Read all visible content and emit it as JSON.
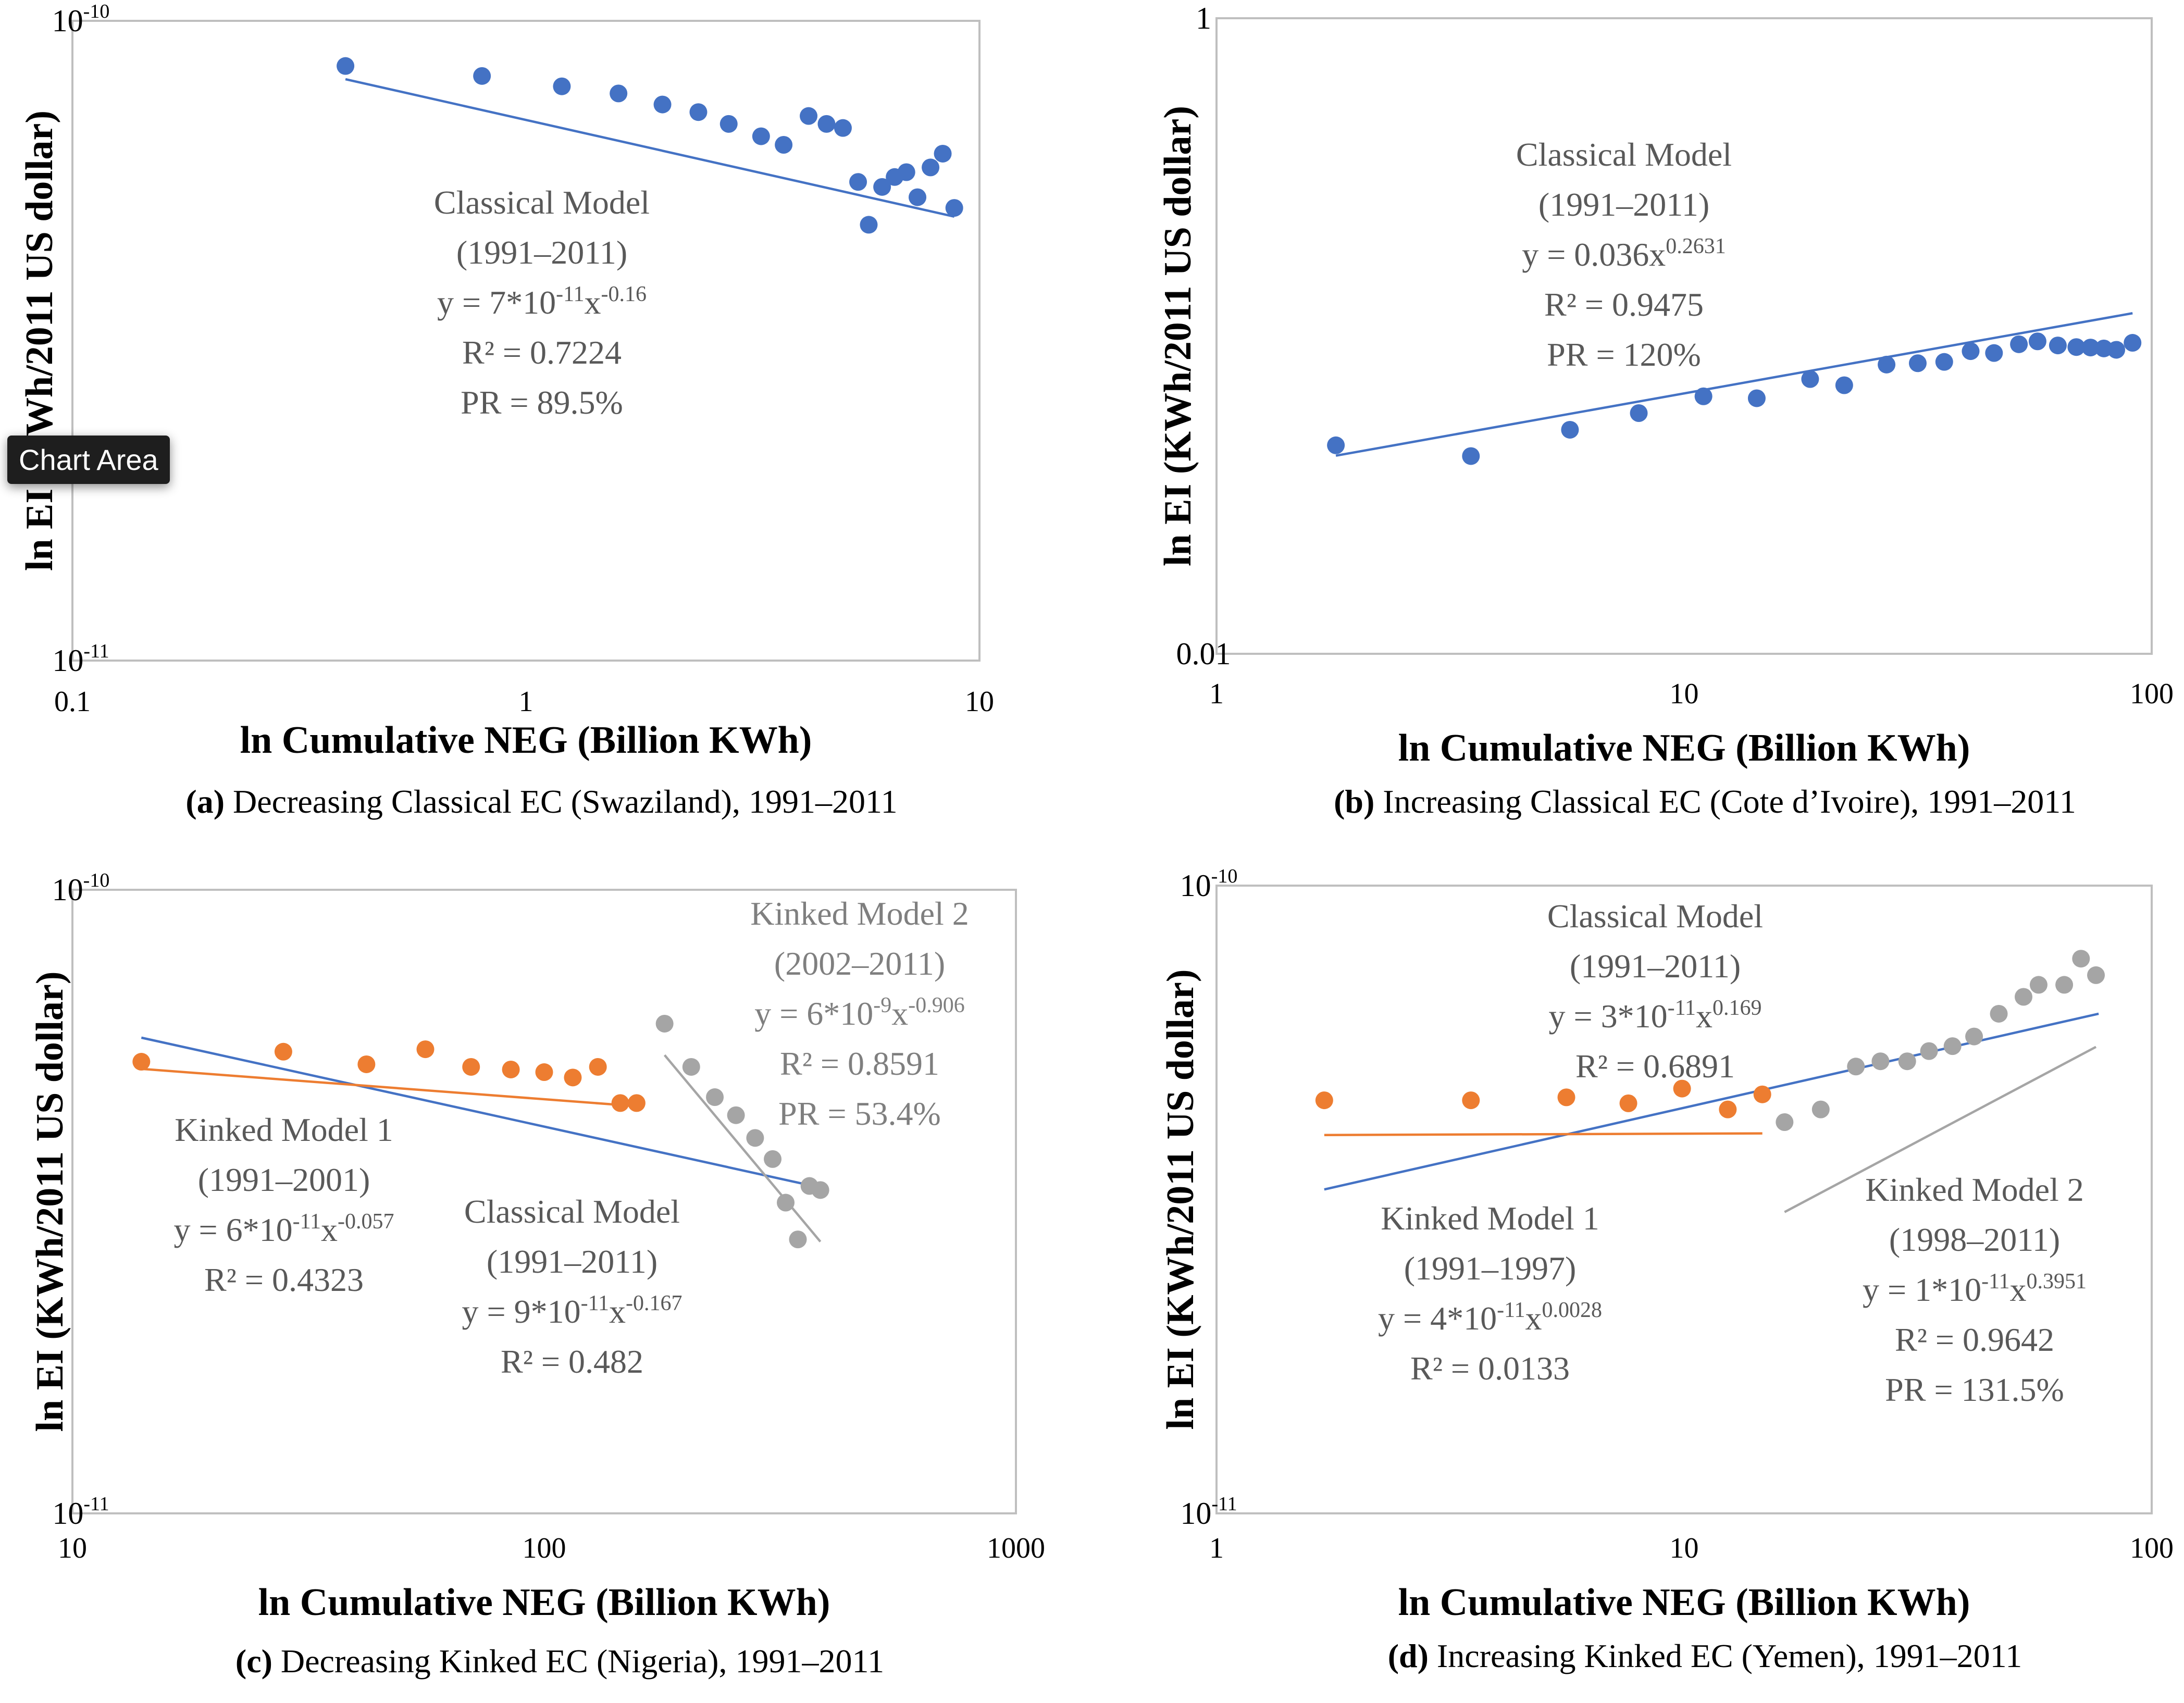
{
  "tooltip": {
    "text": "Chart Area"
  },
  "colors": {
    "blue": "#4472c4",
    "orange": "#ed7d31",
    "gray": "#a5a5a5",
    "text_gray": "#595959",
    "frame": "#bfbfbf"
  },
  "chart_data": [
    {
      "type": "scatter",
      "scale": "log-log",
      "caption_letter": "(a)",
      "caption_rest": " Decreasing Classical EC (Swaziland), 1991–2011",
      "xlabel": "ln Cumulative NEG (Billion KWh)",
      "ylabel": "ln EI (KWh/2011 US dollar)",
      "xlim": [
        0.1,
        10
      ],
      "ylim": [
        1e-11,
        1e-10
      ],
      "x_ticks": [
        {
          "label": "0.1",
          "value": 0.1
        },
        {
          "label": "1",
          "value": 1
        },
        {
          "label": "10",
          "value": 10
        }
      ],
      "y_ticks": [
        {
          "base": "10",
          "exp": "-11",
          "value": 1e-11
        },
        {
          "base": "10",
          "exp": "-10",
          "value": 1e-10
        }
      ],
      "series": [
        {
          "name": "Classical Model",
          "color": "#4472c4",
          "points": [
            [
              0.4,
              8.5e-11
            ],
            [
              0.8,
              8.2e-11
            ],
            [
              1.2,
              7.9e-11
            ],
            [
              1.6,
              7.7e-11
            ],
            [
              2.0,
              7.4e-11
            ],
            [
              2.4,
              7.2e-11
            ],
            [
              2.8,
              6.9e-11
            ],
            [
              3.3,
              6.6e-11
            ],
            [
              3.7,
              6.4e-11
            ],
            [
              4.2,
              7.1e-11
            ],
            [
              4.6,
              6.9e-11
            ],
            [
              5.0,
              6.8e-11
            ],
            [
              5.4,
              5.6e-11
            ],
            [
              5.7,
              4.8e-11
            ],
            [
              6.1,
              5.5e-11
            ],
            [
              6.5,
              5.7e-11
            ],
            [
              6.9,
              5.8e-11
            ],
            [
              7.3,
              5.3e-11
            ],
            [
              7.8,
              5.9e-11
            ],
            [
              8.3,
              6.2e-11
            ],
            [
              8.8,
              5.1e-11
            ]
          ],
          "fit": {
            "x_range": [
              0.4,
              8.8
            ],
            "coef": 7e-11,
            "exp": -0.16
          }
        }
      ],
      "annotations": [
        {
          "color": "#595959",
          "lines": [
            {
              "text": "Classical Model"
            },
            {
              "text": "(1991–2011)"
            },
            {
              "text": "y = 7*10",
              "sup": "-11",
              "text2": "x",
              "sup2": "-0.16"
            },
            {
              "text": "R² = 0.7224"
            },
            {
              "text": "PR = 89.5%"
            }
          ]
        }
      ]
    },
    {
      "type": "scatter",
      "scale": "log-log",
      "caption_letter": "(b)",
      "caption_rest": " Increasing Classical EC (Cote d’Ivoire), 1991–2011",
      "xlabel": "ln Cumulative NEG (Billion KWh)",
      "ylabel": "ln EI (KWh/2011 US dollar)",
      "xlim": [
        1,
        100
      ],
      "ylim": [
        0.01,
        1
      ],
      "x_ticks": [
        {
          "label": "1",
          "value": 1
        },
        {
          "label": "10",
          "value": 10
        },
        {
          "label": "100",
          "value": 100
        }
      ],
      "y_ticks": [
        {
          "base": "0.01",
          "value": 0.01
        },
        {
          "base": "1",
          "value": 1
        }
      ],
      "series": [
        {
          "name": "Classical Model",
          "color": "#4472c4",
          "points": [
            [
              1.8,
              0.0453
            ],
            [
              3.5,
              0.0419
            ],
            [
              5.7,
              0.0507
            ],
            [
              8.0,
              0.0572
            ],
            [
              11.0,
              0.0646
            ],
            [
              14.3,
              0.0637
            ],
            [
              18.6,
              0.0732
            ],
            [
              22.0,
              0.07
            ],
            [
              27.1,
              0.0813
            ],
            [
              31.6,
              0.0821
            ],
            [
              36.0,
              0.0829
            ],
            [
              41.0,
              0.0896
            ],
            [
              46.0,
              0.0884
            ],
            [
              52.0,
              0.0942
            ],
            [
              57.0,
              0.0962
            ],
            [
              63.0,
              0.0934
            ],
            [
              69.0,
              0.0923
            ],
            [
              74.0,
              0.092
            ],
            [
              79.0,
              0.0914
            ],
            [
              84.0,
              0.0905
            ],
            [
              91.0,
              0.0952
            ]
          ],
          "fit": {
            "x_range": [
              1.8,
              91
            ],
            "coef": 0.036,
            "exp": 0.2631
          }
        }
      ],
      "annotations": [
        {
          "color": "#595959",
          "lines": [
            {
              "text": "Classical Model"
            },
            {
              "text": "(1991–2011)"
            },
            {
              "text": "y = 0.036x",
              "sup": "0.2631"
            },
            {
              "text": "R² = 0.9475"
            },
            {
              "text": "PR = 120%"
            }
          ]
        }
      ]
    },
    {
      "type": "scatter",
      "scale": "log-log",
      "caption_letter": "(c)",
      "caption_rest": " Decreasing Kinked EC (Nigeria), 1991–2011",
      "xlabel": "ln Cumulative NEG (Billion KWh)",
      "ylabel": "ln EI (KWh/2011 US dollar)",
      "xlim": [
        10,
        1000
      ],
      "ylim": [
        1e-11,
        1e-10
      ],
      "x_ticks": [
        {
          "label": "10",
          "value": 10
        },
        {
          "label": "100",
          "value": 100
        },
        {
          "label": "1000",
          "value": 1000
        }
      ],
      "y_ticks": [
        {
          "base": "10",
          "exp": "-11",
          "value": 1e-11
        },
        {
          "base": "10",
          "exp": "-10",
          "value": 1e-10
        }
      ],
      "series": [
        {
          "name": "Classical Model",
          "color": "#4472c4",
          "points": [],
          "fit": {
            "x_range": [
              14,
              380
            ],
            "coef": 9e-11,
            "exp": -0.167
          }
        },
        {
          "name": "Kinked Model 1",
          "color": "#ed7d31",
          "points": [
            [
              14,
              5.3e-11
            ],
            [
              28,
              5.5e-11
            ],
            [
              42,
              5.25e-11
            ],
            [
              56,
              5.55e-11
            ],
            [
              70,
              5.2e-11
            ],
            [
              85,
              5.15e-11
            ],
            [
              100,
              5.1e-11
            ],
            [
              115,
              5e-11
            ],
            [
              130,
              5.2e-11
            ],
            [
              145,
              4.55e-11
            ],
            [
              157,
              4.55e-11
            ]
          ],
          "fit": {
            "x_range": [
              14,
              160
            ],
            "coef": 6e-11,
            "exp": -0.057
          }
        },
        {
          "name": "Kinked Model 2",
          "color": "#a5a5a5",
          "points": [
            [
              180,
              6.1e-11
            ],
            [
              205,
              5.2e-11
            ],
            [
              230,
              4.65e-11
            ],
            [
              255,
              4.35e-11
            ],
            [
              280,
              4e-11
            ],
            [
              305,
              3.7e-11
            ],
            [
              325,
              3.15e-11
            ],
            [
              345,
              2.75e-11
            ],
            [
              365,
              3.35e-11
            ],
            [
              385,
              3.3e-11
            ]
          ],
          "fit": {
            "x_range": [
              180,
              385
            ],
            "coef": 6e-09,
            "exp": -0.906
          }
        }
      ],
      "annotations": [
        {
          "color": "#7f7f7f",
          "lines": [
            {
              "text": "Kinked Model 2"
            },
            {
              "text": "(2002–2011)"
            },
            {
              "text": "y = 6*10",
              "sup": "-9",
              "text2": "x",
              "sup2": "-0.906"
            },
            {
              "text": "R² = 0.8591"
            },
            {
              "text": "PR = 53.4%"
            }
          ]
        },
        {
          "color": "#595959",
          "lines": [
            {
              "text": "Kinked Model 1"
            },
            {
              "text": "(1991–2001)"
            },
            {
              "text": "y = 6*10",
              "sup": "-11",
              "text2": "x",
              "sup2": "-0.057"
            },
            {
              "text": "R² = 0.4323"
            }
          ]
        },
        {
          "color": "#595959",
          "lines": [
            {
              "text": "Classical Model"
            },
            {
              "text": "(1991–2011)"
            },
            {
              "text": "y = 9*10",
              "sup": "-11",
              "text2": "x",
              "sup2": "-0.167"
            },
            {
              "text": "R² = 0.482"
            }
          ]
        }
      ]
    },
    {
      "type": "scatter",
      "scale": "log-log",
      "caption_letter": "(d)",
      "caption_rest": " Increasing Kinked EC (Yemen), 1991–2011",
      "xlabel": "ln Cumulative NEG (Billion KWh)",
      "ylabel": "ln EI (KWh/2011 US dollar)",
      "xlim": [
        1,
        100
      ],
      "ylim": [
        1e-11,
        1e-10
      ],
      "x_ticks": [
        {
          "label": "1",
          "value": 1
        },
        {
          "label": "10",
          "value": 10
        },
        {
          "label": "100",
          "value": 100
        }
      ],
      "y_ticks": [
        {
          "base": "10",
          "exp": "-11",
          "value": 1e-11
        },
        {
          "base": "10",
          "exp": "-10",
          "value": 1e-10
        }
      ],
      "series": [
        {
          "name": "Classical Model",
          "color": "#4472c4",
          "points": [],
          "fit": {
            "x_range": [
              1.7,
              77
            ],
            "coef": 3e-11,
            "exp": 0.169
          }
        },
        {
          "name": "Kinked Model 1",
          "color": "#ed7d31",
          "points": [
            [
              1.7,
              4.55e-11
            ],
            [
              3.5,
              4.55e-11
            ],
            [
              5.6,
              4.6e-11
            ],
            [
              7.6,
              4.5e-11
            ],
            [
              9.9,
              4.75e-11
            ],
            [
              12.4,
              4.4e-11
            ],
            [
              14.7,
              4.65e-11
            ]
          ],
          "fit": {
            "x_range": [
              1.7,
              14.7
            ],
            "coef": 4e-11,
            "exp": 0.0028
          }
        },
        {
          "name": "Kinked Model 2",
          "color": "#a5a5a5",
          "points": [
            [
              16.4,
              4.2e-11
            ],
            [
              19.6,
              4.4e-11
            ],
            [
              23.3,
              5.15e-11
            ],
            [
              26.3,
              5.25e-11
            ],
            [
              30.0,
              5.25e-11
            ],
            [
              33.4,
              5.45e-11
            ],
            [
              37.5,
              5.55e-11
            ],
            [
              41.7,
              5.75e-11
            ],
            [
              47.1,
              6.25e-11
            ],
            [
              53.2,
              6.65e-11
            ],
            [
              57.3,
              6.95e-11
            ],
            [
              65.0,
              6.95e-11
            ],
            [
              70.6,
              7.65e-11
            ],
            [
              76.0,
              7.2e-11
            ]
          ],
          "fit": {
            "x_range": [
              16.4,
              76
            ],
            "coef": 1e-11,
            "exp": 0.3951
          }
        }
      ],
      "annotations": [
        {
          "color": "#595959",
          "lines": [
            {
              "text": "Classical Model"
            },
            {
              "text": "(1991–2011)"
            },
            {
              "text": "y = 3*10",
              "sup": "-11",
              "text2": "x",
              "sup2": "0.169"
            },
            {
              "text": "R² = 0.6891"
            }
          ]
        },
        {
          "color": "#595959",
          "lines": [
            {
              "text": "Kinked Model 1"
            },
            {
              "text": "(1991–1997)"
            },
            {
              "text": "y = 4*10",
              "sup": "-11",
              "text2": "x",
              "sup2": "0.0028"
            },
            {
              "text": "R² = 0.0133"
            }
          ]
        },
        {
          "color": "#595959",
          "lines": [
            {
              "text": "Kinked Model 2"
            },
            {
              "text": "(1998–2011)"
            },
            {
              "text": "y = 1*10",
              "sup": "-11",
              "text2": "x",
              "sup2": "0.3951"
            },
            {
              "text": "R² = 0.9642"
            },
            {
              "text": "PR = 131.5%"
            }
          ]
        }
      ]
    }
  ]
}
